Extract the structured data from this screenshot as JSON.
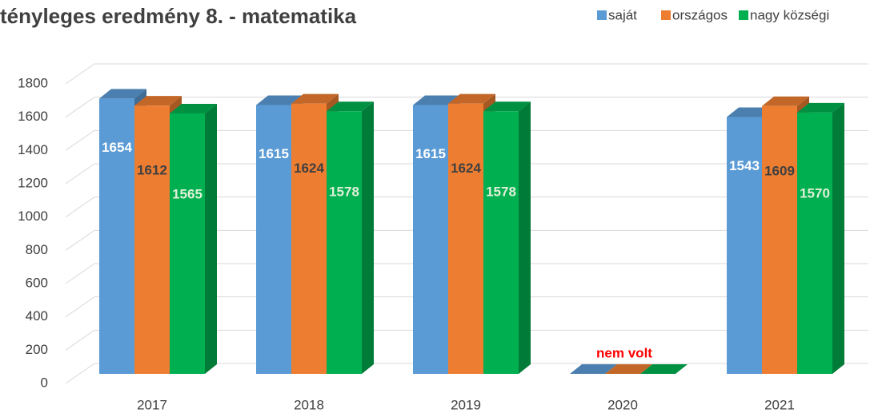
{
  "chart_data": {
    "type": "bar3d",
    "title": "tényleges eredmény 8. - matematika",
    "categories": [
      "2017",
      "2018",
      "2019",
      "2020",
      "2021"
    ],
    "series": [
      {
        "name": "saját",
        "color": "#5b9bd5",
        "values": [
          1654,
          1615,
          1615,
          0,
          1543
        ]
      },
      {
        "name": "országos",
        "color": "#ed7d31",
        "values": [
          1612,
          1624,
          1624,
          0,
          1609
        ]
      },
      {
        "name": "nagy községi",
        "color": "#00b050",
        "values": [
          1565,
          1578,
          1578,
          0,
          1570
        ]
      }
    ],
    "ylim": [
      0,
      1800
    ],
    "yticks": [
      0,
      200,
      400,
      600,
      800,
      1000,
      1200,
      1400,
      1600,
      1800
    ],
    "grid": true,
    "legend": "top-right",
    "annotation": "nem volt"
  }
}
